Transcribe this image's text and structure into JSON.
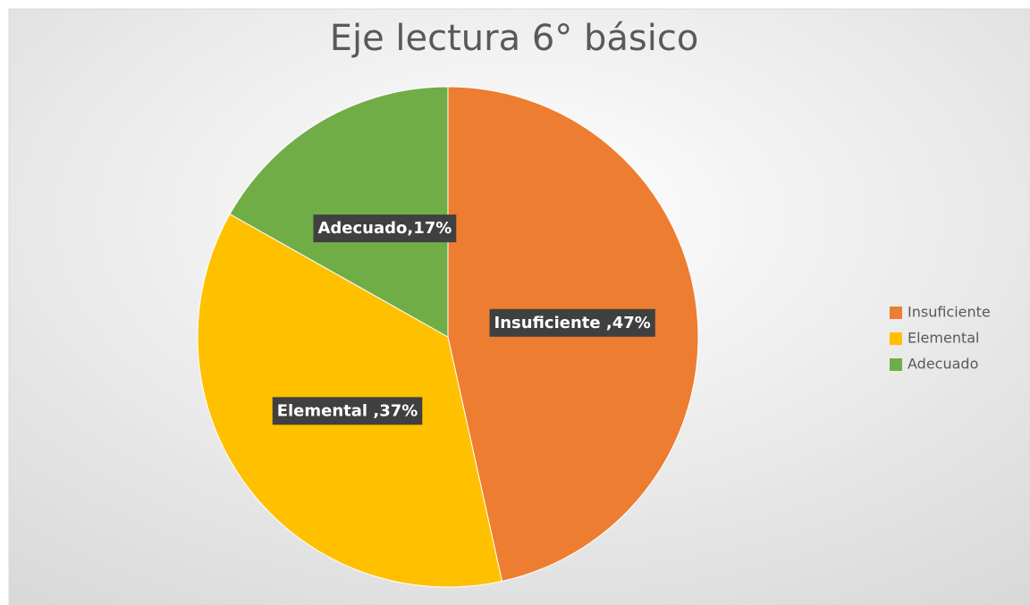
{
  "chart_data": {
    "type": "pie",
    "title": "Eje lectura 6° básico",
    "categories": [
      "Insuficiente",
      "Elemental",
      "Adecuado"
    ],
    "values": [
      47,
      37,
      17
    ],
    "value_labels": [
      "Insuficiente ,47%",
      "Elemental ,37%",
      "Adecuado,17%"
    ],
    "colors": [
      "#ed7d31",
      "#ffc000",
      "#70ad47"
    ],
    "legend": "right"
  }
}
